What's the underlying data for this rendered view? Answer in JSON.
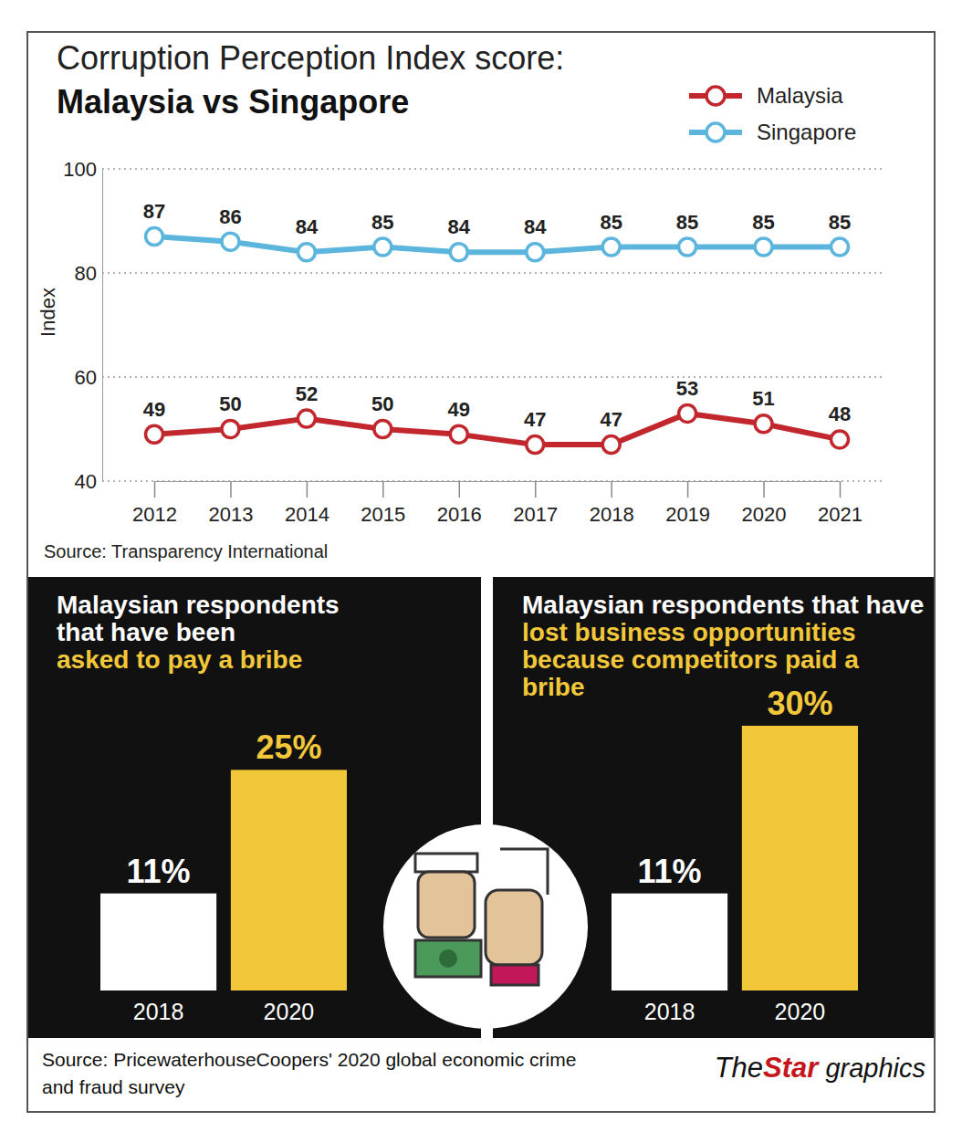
{
  "chart_data": [
    {
      "type": "line",
      "title": "Corruption Perception Index score:",
      "subtitle": "Malaysia vs Singapore",
      "y_label": "Index",
      "categories": [
        "2012",
        "2013",
        "2014",
        "2015",
        "2016",
        "2017",
        "2018",
        "2019",
        "2020",
        "2021"
      ],
      "series": [
        {
          "name": "Malaysia",
          "color": "#c1272d",
          "marker": "circle",
          "values": [
            49,
            50,
            52,
            50,
            49,
            47,
            47,
            53,
            51,
            48
          ]
        },
        {
          "name": "Singapore",
          "color": "#5bb5dd",
          "marker": "circle",
          "values": [
            87,
            86,
            84,
            85,
            84,
            84,
            85,
            85,
            85,
            85
          ]
        }
      ],
      "ylim": [
        40,
        100
      ],
      "yticks": [
        40,
        60,
        80,
        100
      ],
      "grid": true,
      "legend": "top-right",
      "data_labels": true,
      "source": "Source: Transparency International"
    },
    {
      "type": "bar",
      "title": "Malaysian respondents that have been",
      "subtitle": "asked to pay a bribe",
      "categories": [
        "2018",
        "2020"
      ],
      "values": [
        11,
        25
      ],
      "value_labels": [
        "11%",
        "25%"
      ],
      "colors": [
        "#ffffff",
        "#f2c83a"
      ],
      "ylim": [
        0,
        30
      ],
      "tick_labels": "x",
      "data_labels": true,
      "source": "Source: PricewaterhouseCoopers' 2020 global economic crime and fraud survey"
    },
    {
      "type": "bar",
      "title": "Malaysian respondents that have",
      "subtitle": "lost business opportunities because competitors paid a bribe",
      "categories": [
        "2018",
        "2020"
      ],
      "values": [
        11,
        30
      ],
      "value_labels": [
        "11%",
        "30%"
      ],
      "colors": [
        "#ffffff",
        "#f2c83a"
      ],
      "ylim": [
        0,
        30
      ],
      "tick_labels": "x",
      "data_labels": true
    }
  ],
  "credit": [
    "The",
    "Star",
    "graphics"
  ]
}
